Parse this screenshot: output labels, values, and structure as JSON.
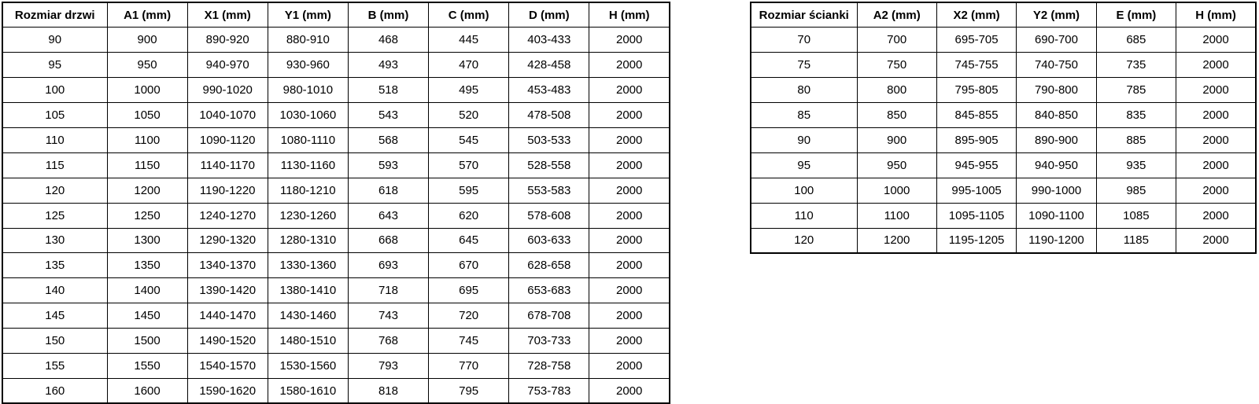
{
  "colors": {
    "background": "#ffffff",
    "border": "#000000",
    "text": "#000000"
  },
  "tables": [
    {
      "name": "door-sizes",
      "headers": [
        "Rozmiar drzwi",
        "A1 (mm)",
        "X1 (mm)",
        "Y1 (mm)",
        "B (mm)",
        "C (mm)",
        "D (mm)",
        "H (mm)"
      ],
      "rows": [
        [
          "90",
          "900",
          "890-920",
          "880-910",
          "468",
          "445",
          "403-433",
          "2000"
        ],
        [
          "95",
          "950",
          "940-970",
          "930-960",
          "493",
          "470",
          "428-458",
          "2000"
        ],
        [
          "100",
          "1000",
          "990-1020",
          "980-1010",
          "518",
          "495",
          "453-483",
          "2000"
        ],
        [
          "105",
          "1050",
          "1040-1070",
          "1030-1060",
          "543",
          "520",
          "478-508",
          "2000"
        ],
        [
          "110",
          "1100",
          "1090-1120",
          "1080-1110",
          "568",
          "545",
          "503-533",
          "2000"
        ],
        [
          "115",
          "1150",
          "1140-1170",
          "1130-1160",
          "593",
          "570",
          "528-558",
          "2000"
        ],
        [
          "120",
          "1200",
          "1190-1220",
          "1180-1210",
          "618",
          "595",
          "553-583",
          "2000"
        ],
        [
          "125",
          "1250",
          "1240-1270",
          "1230-1260",
          "643",
          "620",
          "578-608",
          "2000"
        ],
        [
          "130",
          "1300",
          "1290-1320",
          "1280-1310",
          "668",
          "645",
          "603-633",
          "2000"
        ],
        [
          "135",
          "1350",
          "1340-1370",
          "1330-1360",
          "693",
          "670",
          "628-658",
          "2000"
        ],
        [
          "140",
          "1400",
          "1390-1420",
          "1380-1410",
          "718",
          "695",
          "653-683",
          "2000"
        ],
        [
          "145",
          "1450",
          "1440-1470",
          "1430-1460",
          "743",
          "720",
          "678-708",
          "2000"
        ],
        [
          "150",
          "1500",
          "1490-1520",
          "1480-1510",
          "768",
          "745",
          "703-733",
          "2000"
        ],
        [
          "155",
          "1550",
          "1540-1570",
          "1530-1560",
          "793",
          "770",
          "728-758",
          "2000"
        ],
        [
          "160",
          "1600",
          "1590-1620",
          "1580-1610",
          "818",
          "795",
          "753-783",
          "2000"
        ]
      ]
    },
    {
      "name": "wall-panel-sizes",
      "headers": [
        "Rozmiar ścianki",
        "A2 (mm)",
        "X2 (mm)",
        "Y2 (mm)",
        "E (mm)",
        "H (mm)"
      ],
      "rows": [
        [
          "70",
          "700",
          "695-705",
          "690-700",
          "685",
          "2000"
        ],
        [
          "75",
          "750",
          "745-755",
          "740-750",
          "735",
          "2000"
        ],
        [
          "80",
          "800",
          "795-805",
          "790-800",
          "785",
          "2000"
        ],
        [
          "85",
          "850",
          "845-855",
          "840-850",
          "835",
          "2000"
        ],
        [
          "90",
          "900",
          "895-905",
          "890-900",
          "885",
          "2000"
        ],
        [
          "95",
          "950",
          "945-955",
          "940-950",
          "935",
          "2000"
        ],
        [
          "100",
          "1000",
          "995-1005",
          "990-1000",
          "985",
          "2000"
        ],
        [
          "110",
          "1100",
          "1095-1105",
          "1090-1100",
          "1085",
          "2000"
        ],
        [
          "120",
          "1200",
          "1195-1205",
          "1190-1200",
          "1185",
          "2000"
        ]
      ]
    }
  ]
}
